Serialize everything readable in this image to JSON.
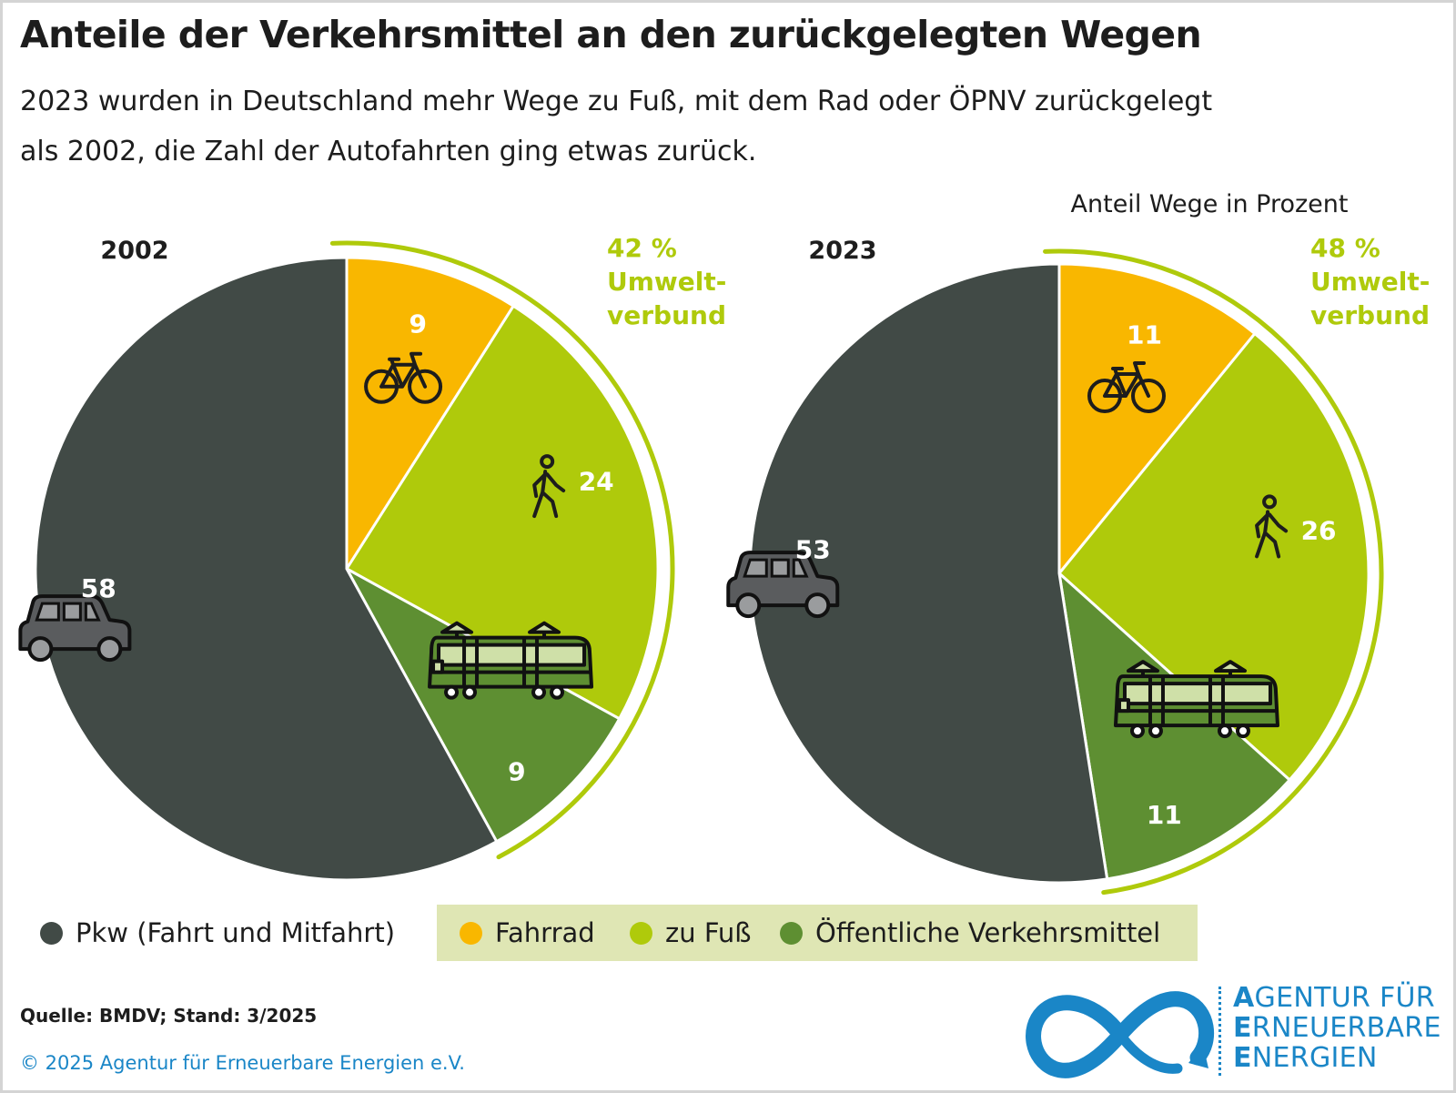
{
  "title": "Anteile der Verkehrsmittel an den zurückgelegten Wegen",
  "subtitle_line1": "2023 wurden in Deutschland mehr Wege zu Fuß, mit dem Rad oder ÖPNV zurückgelegt",
  "subtitle_line2": "als 2002, die Zahl der Autofahrten ging etwas zurück.",
  "unit_note": "Anteil Wege in Prozent",
  "colors": {
    "Pkw": "#414a46",
    "Fahrrad": "#f9b700",
    "zu Fuß": "#afca0b",
    "Öffentliche Verkehrsmittel": "#5e8f32",
    "umweltverbund_arc": "#afca0b",
    "brand_blue": "#1a86c7"
  },
  "chart_data": [
    {
      "type": "pie",
      "title": "2002",
      "slices": [
        {
          "label": "Fahrrad",
          "value": 9,
          "icon": "bicycle-icon"
        },
        {
          "label": "zu Fuß",
          "value": 24,
          "icon": "pedestrian-icon"
        },
        {
          "label": "Öffentliche Verkehrsmittel",
          "value": 9,
          "icon": "tram-icon"
        },
        {
          "label": "Pkw (Fahrt und Mitfahrt)",
          "value": 58,
          "icon": "car-icon"
        }
      ],
      "umweltverbund": {
        "value_label": "42 %",
        "line1": "Umwelt-",
        "line2": "verbund"
      }
    },
    {
      "type": "pie",
      "title": "2023",
      "slices": [
        {
          "label": "Fahrrad",
          "value": 11,
          "icon": "bicycle-icon"
        },
        {
          "label": "zu Fuß",
          "value": 26,
          "icon": "pedestrian-icon"
        },
        {
          "label": "Öffentliche Verkehrsmittel",
          "value": 11,
          "icon": "tram-icon"
        },
        {
          "label": "Pkw (Fahrt und Mitfahrt)",
          "value": 53,
          "icon": "car-icon"
        }
      ],
      "umweltverbund": {
        "value_label": "48 %",
        "line1": "Umwelt-",
        "line2": "verbund"
      }
    }
  ],
  "legend": [
    {
      "label": "Pkw (Fahrt und Mitfahrt)",
      "color": "#414a46"
    },
    {
      "label": "Fahrrad",
      "color": "#f9b700"
    },
    {
      "label": "zu Fuß",
      "color": "#afca0b"
    },
    {
      "label": "Öffentliche Verkehrsmittel",
      "color": "#5e8f32"
    }
  ],
  "source": "Quelle: BMDV; Stand: 3/2025",
  "copyright": "© 2025 Agentur für Erneuerbare Energien e.V.",
  "logo": {
    "line1_initial": "A",
    "line1_rest": "GENTUR FÜR",
    "line2_initial": "E",
    "line2_rest": "RNEUERBARE",
    "line3_initial": "E",
    "line3_rest": "NERGIEN"
  }
}
